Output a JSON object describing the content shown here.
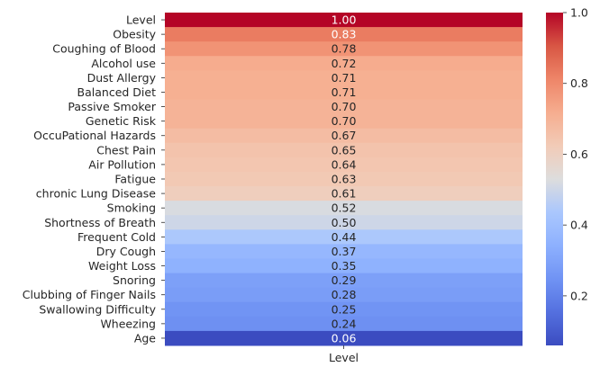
{
  "chart_data": {
    "type": "heatmap",
    "colormap": "coolwarm",
    "annotate": true,
    "value_format": "0.00",
    "rows": [
      {
        "label": "Level",
        "value": 1.0,
        "text": "1.00"
      },
      {
        "label": "Obesity",
        "value": 0.83,
        "text": "0.83"
      },
      {
        "label": "Coughing of Blood",
        "value": 0.78,
        "text": "0.78"
      },
      {
        "label": "Alcohol use",
        "value": 0.72,
        "text": "0.72"
      },
      {
        "label": "Dust Allergy",
        "value": 0.71,
        "text": "0.71"
      },
      {
        "label": "Balanced Diet",
        "value": 0.71,
        "text": "0.71"
      },
      {
        "label": "Passive Smoker",
        "value": 0.7,
        "text": "0.70"
      },
      {
        "label": "Genetic Risk",
        "value": 0.7,
        "text": "0.70"
      },
      {
        "label": "OccuPational Hazards",
        "value": 0.67,
        "text": "0.67"
      },
      {
        "label": "Chest Pain",
        "value": 0.65,
        "text": "0.65"
      },
      {
        "label": "Air Pollution",
        "value": 0.64,
        "text": "0.64"
      },
      {
        "label": "Fatigue",
        "value": 0.63,
        "text": "0.63"
      },
      {
        "label": "chronic Lung Disease",
        "value": 0.61,
        "text": "0.61"
      },
      {
        "label": "Smoking",
        "value": 0.52,
        "text": "0.52"
      },
      {
        "label": "Shortness of Breath",
        "value": 0.5,
        "text": "0.50"
      },
      {
        "label": "Frequent Cold",
        "value": 0.44,
        "text": "0.44"
      },
      {
        "label": "Dry Cough",
        "value": 0.37,
        "text": "0.37"
      },
      {
        "label": "Weight Loss",
        "value": 0.35,
        "text": "0.35"
      },
      {
        "label": "Snoring",
        "value": 0.29,
        "text": "0.29"
      },
      {
        "label": "Clubbing of Finger Nails",
        "value": 0.28,
        "text": "0.28"
      },
      {
        "label": "Swallowing Difficulty",
        "value": 0.25,
        "text": "0.25"
      },
      {
        "label": "Wheezing",
        "value": 0.24,
        "text": "0.24"
      },
      {
        "label": "Age",
        "value": 0.06,
        "text": "0.06"
      }
    ],
    "columns": [
      "Level"
    ],
    "colorbar": {
      "vmin": 0.06,
      "vmax": 1.0,
      "ticks": [
        {
          "value": 0.2,
          "label": "0.2"
        },
        {
          "value": 0.4,
          "label": "0.4"
        },
        {
          "value": 0.6,
          "label": "0.6"
        },
        {
          "value": 0.8,
          "label": "0.8"
        },
        {
          "value": 1.0,
          "label": "1.0"
        }
      ]
    }
  }
}
